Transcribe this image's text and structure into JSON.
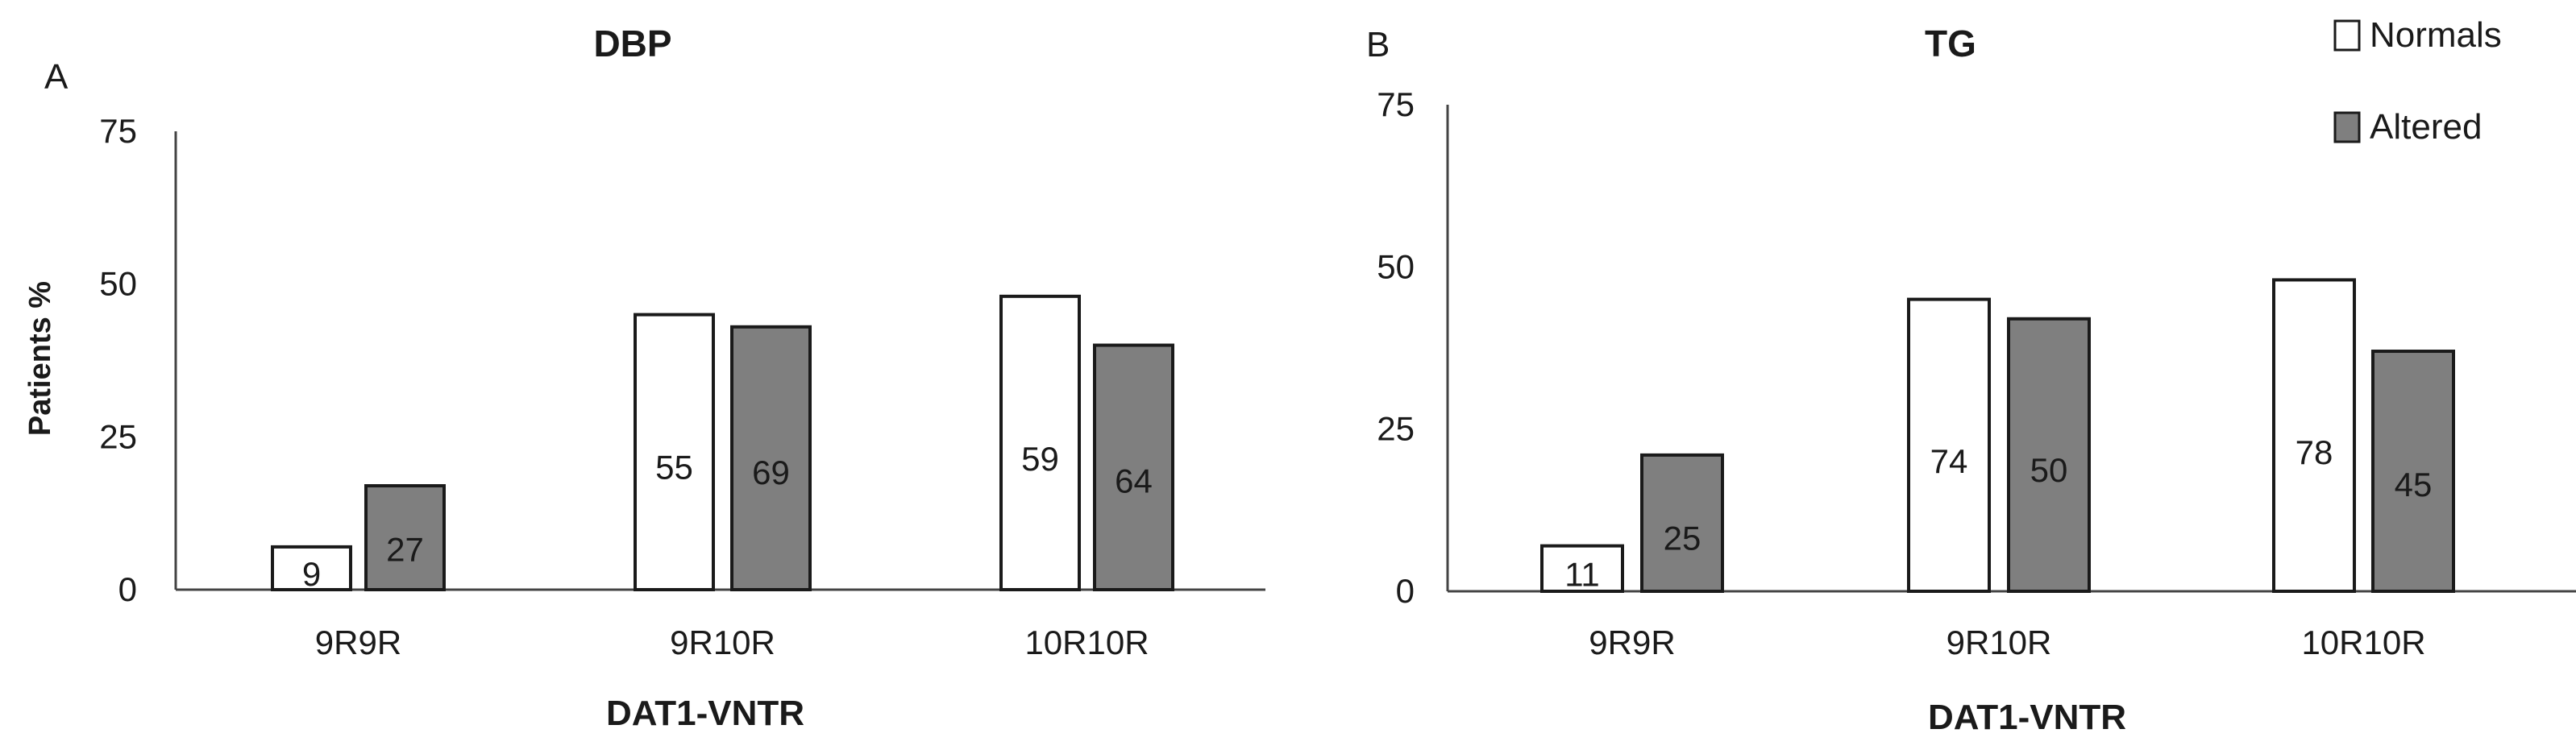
{
  "legend": {
    "entries": [
      {
        "label": "Normals",
        "color": "#ffffff"
      },
      {
        "label": "Altered",
        "color": "#7f7f7f"
      }
    ],
    "placement": "top-right"
  },
  "colors": {
    "normals_fill": "#ffffff",
    "altered_fill": "#7f7f7f",
    "stroke": "#1a1a1a",
    "axis": "#444444"
  },
  "chart_data": [
    {
      "type": "bar",
      "panel_letter": "A",
      "title": "DBP",
      "ylabel": "Patients %",
      "xlabel": "DAT1-VNTR",
      "ylim": [
        0,
        75
      ],
      "yticks": [
        0,
        25,
        50,
        75
      ],
      "grid": false,
      "categories": [
        "9R9R",
        "9R10R",
        "10R10R"
      ],
      "series": [
        {
          "name": "Normals",
          "values": [
            7,
            45,
            48
          ],
          "labels": [
            "9",
            "55",
            "59"
          ]
        },
        {
          "name": "Altered",
          "values": [
            17,
            43,
            40
          ],
          "labels": [
            "27",
            "69",
            "64"
          ]
        }
      ]
    },
    {
      "type": "bar",
      "panel_letter": "B",
      "title": "TG",
      "ylabel": "",
      "xlabel": "DAT1-VNTR",
      "ylim": [
        0,
        75
      ],
      "yticks": [
        0,
        25,
        50,
        75
      ],
      "grid": false,
      "categories": [
        "9R9R",
        "9R10R",
        "10R10R"
      ],
      "series": [
        {
          "name": "Normals",
          "values": [
            7,
            45,
            48
          ],
          "labels": [
            "11",
            "74",
            "78"
          ]
        },
        {
          "name": "Altered",
          "values": [
            21,
            42,
            37
          ],
          "labels": [
            "25",
            "50",
            "45"
          ]
        }
      ]
    }
  ]
}
